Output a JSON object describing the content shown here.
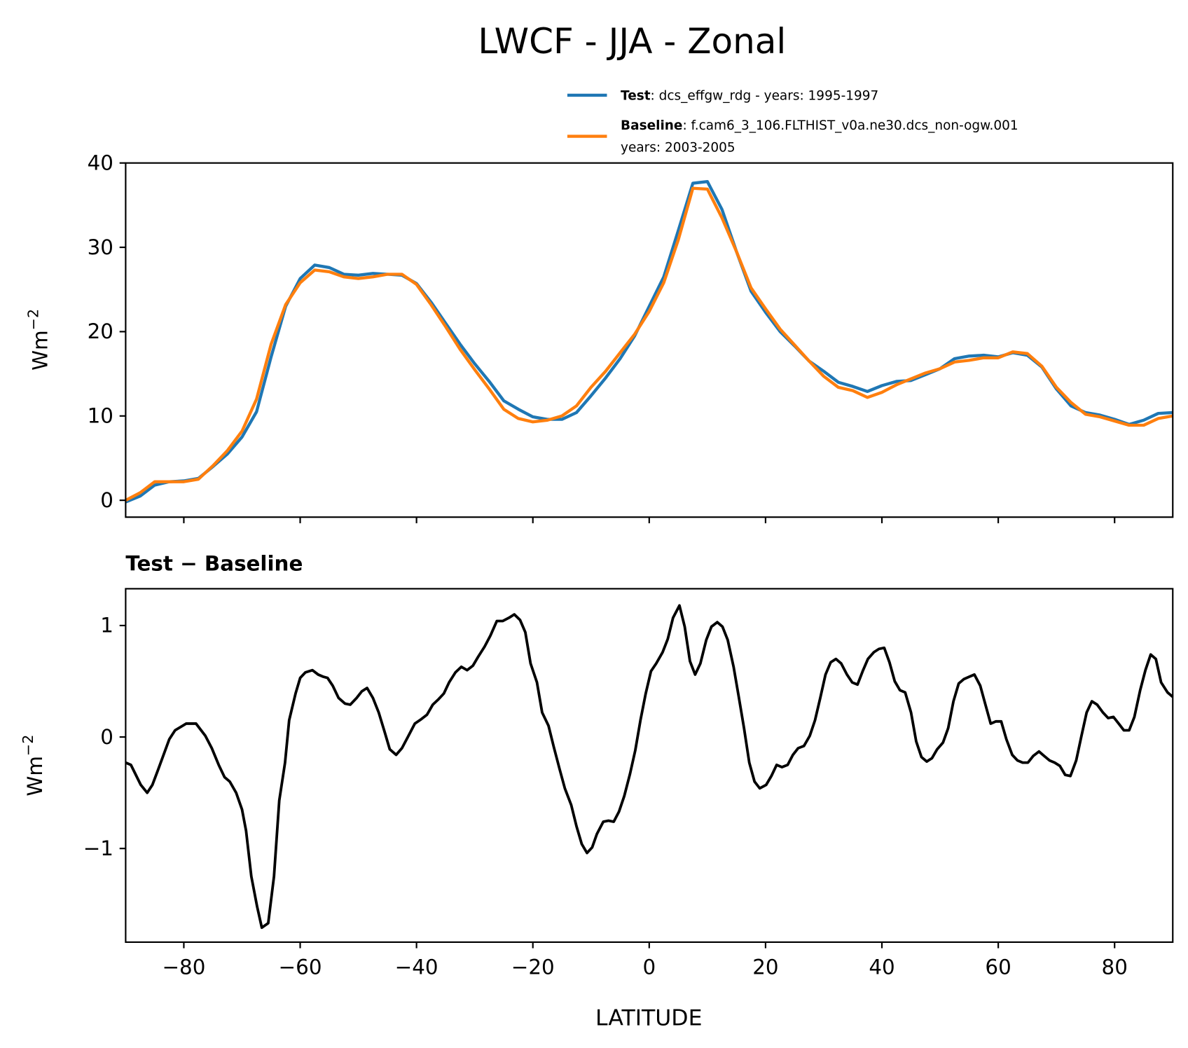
{
  "chart_data": [
    {
      "type": "line",
      "title": "LWCF - JJA - Zonal",
      "xlabel": "",
      "ylabel": "Wm",
      "ylabel_sup": "−2",
      "xlim": [
        -90,
        90
      ],
      "ylim": [
        -2,
        40
      ],
      "grid": false,
      "legend_placement": "above-right",
      "yticks": [
        0,
        10,
        20,
        30,
        40
      ],
      "ytick_labels": [
        "0",
        "10",
        "20",
        "30",
        "40"
      ],
      "xticks": [
        -80,
        -60,
        -40,
        -20,
        0,
        20,
        40,
        60,
        80
      ],
      "x": [
        -90,
        -87.5,
        -85,
        -82.5,
        -80,
        -77.5,
        -75,
        -72.5,
        -70,
        -67.5,
        -65,
        -62.5,
        -60,
        -57.5,
        -55,
        -52.5,
        -50,
        -47.5,
        -45,
        -42.5,
        -40,
        -37.5,
        -35,
        -32.5,
        -30,
        -27.5,
        -25,
        -22.5,
        -20,
        -17.5,
        -15,
        -12.5,
        -10,
        -7.5,
        -5,
        -2.5,
        0,
        2.5,
        5,
        7.5,
        10,
        12.5,
        15,
        17.5,
        20,
        22.5,
        25,
        27.5,
        30,
        32.5,
        35,
        37.5,
        40,
        42.5,
        45,
        47.5,
        50,
        52.5,
        55,
        57.5,
        60,
        62.5,
        65,
        67.5,
        70,
        72.5,
        75,
        77.5,
        80,
        82.5,
        85,
        87.5,
        90
      ],
      "series": [
        {
          "name": "Test",
          "legend_bold": "Test",
          "legend_text": ": dcs_effgw_rdg - years: 1995-1997",
          "color": "#1f77b4",
          "values": [
            -0.2,
            0.5,
            1.8,
            2.2,
            2.3,
            2.6,
            4.0,
            5.5,
            7.5,
            10.5,
            17.0,
            23.0,
            26.3,
            27.9,
            27.6,
            26.8,
            26.7,
            26.9,
            26.8,
            26.7,
            25.7,
            23.5,
            21.0,
            18.5,
            16.2,
            14.1,
            11.8,
            10.8,
            9.9,
            9.6,
            9.6,
            10.4,
            12.4,
            14.5,
            16.8,
            19.5,
            23.0,
            26.5,
            32.0,
            37.6,
            37.8,
            34.5,
            29.5,
            24.8,
            22.3,
            20.0,
            18.3,
            16.5,
            15.3,
            14.0,
            13.5,
            12.9,
            13.6,
            14.1,
            14.2,
            14.9,
            15.6,
            16.8,
            17.1,
            17.2,
            17.0,
            17.5,
            17.2,
            15.8,
            13.2,
            11.2,
            10.4,
            10.1,
            9.6,
            9.0,
            9.5,
            10.3,
            10.4
          ]
        },
        {
          "name": "Baseline",
          "legend_bold": "Baseline",
          "legend_text": ": f.cam6_3_106.FLTHIST_v0a.ne30.dcs_non-ogw.001",
          "legend_text2": "years: 2003-2005",
          "color": "#ff7f0e",
          "values": [
            0.0,
            0.9,
            2.2,
            2.2,
            2.2,
            2.5,
            4.1,
            5.9,
            8.2,
            12.0,
            18.5,
            23.2,
            25.8,
            27.3,
            27.1,
            26.5,
            26.3,
            26.5,
            26.8,
            26.8,
            25.6,
            23.2,
            20.6,
            17.9,
            15.5,
            13.2,
            10.8,
            9.7,
            9.3,
            9.5,
            10.0,
            11.2,
            13.4,
            15.3,
            17.5,
            19.7,
            22.4,
            25.8,
            30.9,
            37.0,
            36.9,
            33.5,
            29.5,
            25.2,
            22.7,
            20.3,
            18.4,
            16.5,
            14.7,
            13.4,
            13.0,
            12.2,
            12.8,
            13.7,
            14.4,
            15.1,
            15.6,
            16.4,
            16.6,
            16.9,
            16.9,
            17.6,
            17.4,
            15.9,
            13.4,
            11.6,
            10.2,
            9.9,
            9.4,
            8.9,
            8.9,
            9.7,
            10.0
          ]
        }
      ]
    },
    {
      "type": "line",
      "title": "Test − Baseline",
      "xlabel": "LATITUDE",
      "ylabel": "Wm",
      "ylabel_sup": "−2",
      "xlim": [
        -90,
        90
      ],
      "ylim": [
        -1.84,
        1.33
      ],
      "grid": false,
      "yticks": [
        1,
        0,
        -1
      ],
      "ytick_labels": [
        "1",
        "0",
        "−1"
      ],
      "xticks": [
        -80,
        -60,
        -40,
        -20,
        0,
        20,
        40,
        60,
        80
      ],
      "xtick_labels": [
        "−80",
        "−60",
        "−40",
        "−20",
        "0",
        "20",
        "40",
        "60",
        "80"
      ],
      "series": [
        {
          "name": "Test - Baseline",
          "color": "#000000",
          "x": [
            -90.0,
            -89.1,
            -87.4,
            -86.3,
            -85.4,
            -84.4,
            -82.5,
            -81.5,
            -79.6,
            -77.9,
            -76.3,
            -75.2,
            -74.0,
            -73.0,
            -72.1,
            -71.0,
            -70.0,
            -69.3,
            -68.4,
            -67.4,
            -66.6,
            -65.5,
            -64.5,
            -63.6,
            -62.6,
            -61.9,
            -60.8,
            -60.0,
            -59.1,
            -57.9,
            -56.9,
            -56.0,
            -55.3,
            -54.4,
            -53.4,
            -52.3,
            -51.4,
            -50.3,
            -49.4,
            -48.5,
            -47.5,
            -46.5,
            -45.5,
            -44.6,
            -43.5,
            -42.5,
            -41.4,
            -40.3,
            -39.2,
            -38.2,
            -37.2,
            -36.2,
            -35.3,
            -34.4,
            -33.3,
            -32.3,
            -31.3,
            -30.3,
            -29.4,
            -28.3,
            -27.3,
            -26.2,
            -25.2,
            -24.1,
            -23.2,
            -22.2,
            -21.3,
            -20.4,
            -19.3,
            -18.4,
            -17.3,
            -16.4,
            -15.4,
            -14.5,
            -13.4,
            -12.5,
            -11.6,
            -10.7,
            -9.8,
            -9.0,
            -7.9,
            -7.0,
            -6.1,
            -5.2,
            -4.3,
            -3.3,
            -2.4,
            -1.5,
            -0.6,
            0.3,
            1.2,
            2.3,
            3.2,
            4.1,
            5.2,
            6.1,
            7.0,
            7.9,
            8.8,
            9.8,
            10.7,
            11.7,
            12.6,
            13.5,
            14.5,
            15.4,
            16.3,
            17.2,
            18.1,
            19.0,
            20.1,
            21.0,
            21.9,
            22.8,
            23.8,
            24.7,
            25.6,
            26.6,
            27.6,
            28.5,
            29.4,
            30.3,
            31.2,
            32.1,
            33.0,
            34.0,
            34.9,
            35.8,
            36.7,
            37.6,
            38.6,
            39.5,
            40.4,
            41.3,
            42.2,
            43.1,
            44.0,
            45.0,
            45.9,
            46.8,
            47.7,
            48.6,
            49.5,
            50.5,
            51.4,
            52.3,
            53.2,
            54.1,
            55.0,
            55.9,
            56.9,
            57.8,
            58.7,
            59.6,
            60.5,
            61.4,
            62.4,
            63.3,
            64.2,
            65.1,
            66.0,
            67.0,
            67.9,
            68.8,
            69.7,
            70.6,
            71.5,
            72.4,
            73.4,
            74.3,
            75.2,
            76.1,
            77.0,
            78.0,
            78.9,
            79.8,
            80.7,
            81.6,
            82.5,
            83.4,
            84.4,
            85.3,
            86.2,
            87.1,
            88.0,
            89.1,
            90.0
          ],
          "values": [
            -0.23,
            -0.25,
            -0.43,
            -0.5,
            -0.43,
            -0.29,
            -0.02,
            0.06,
            0.12,
            0.12,
            0.01,
            -0.1,
            -0.25,
            -0.36,
            -0.4,
            -0.5,
            -0.65,
            -0.84,
            -1.25,
            -1.52,
            -1.71,
            -1.67,
            -1.25,
            -0.57,
            -0.23,
            0.15,
            0.39,
            0.53,
            0.58,
            0.6,
            0.56,
            0.54,
            0.53,
            0.46,
            0.35,
            0.3,
            0.29,
            0.35,
            0.41,
            0.44,
            0.35,
            0.22,
            0.05,
            -0.11,
            -0.16,
            -0.1,
            0.01,
            0.12,
            0.16,
            0.2,
            0.29,
            0.34,
            0.39,
            0.49,
            0.58,
            0.63,
            0.6,
            0.64,
            0.72,
            0.81,
            0.91,
            1.04,
            1.04,
            1.07,
            1.1,
            1.05,
            0.94,
            0.66,
            0.49,
            0.22,
            0.1,
            -0.09,
            -0.29,
            -0.46,
            -0.61,
            -0.8,
            -0.96,
            -1.04,
            -0.99,
            -0.87,
            -0.76,
            -0.75,
            -0.76,
            -0.67,
            -0.53,
            -0.33,
            -0.12,
            0.15,
            0.39,
            0.59,
            0.66,
            0.76,
            0.88,
            1.07,
            1.18,
            0.99,
            0.68,
            0.56,
            0.66,
            0.87,
            0.99,
            1.03,
            0.99,
            0.87,
            0.63,
            0.36,
            0.08,
            -0.23,
            -0.4,
            -0.46,
            -0.43,
            -0.35,
            -0.25,
            -0.27,
            -0.25,
            -0.16,
            -0.1,
            -0.08,
            0.01,
            0.15,
            0.35,
            0.56,
            0.67,
            0.7,
            0.66,
            0.56,
            0.49,
            0.47,
            0.59,
            0.7,
            0.76,
            0.79,
            0.8,
            0.67,
            0.5,
            0.42,
            0.4,
            0.22,
            -0.04,
            -0.18,
            -0.22,
            -0.19,
            -0.11,
            -0.05,
            0.08,
            0.32,
            0.48,
            0.52,
            0.54,
            0.56,
            0.46,
            0.29,
            0.12,
            0.14,
            0.14,
            -0.02,
            -0.16,
            -0.21,
            -0.23,
            -0.23,
            -0.17,
            -0.13,
            -0.17,
            -0.21,
            -0.23,
            -0.26,
            -0.34,
            -0.35,
            -0.21,
            0.01,
            0.22,
            0.32,
            0.29,
            0.22,
            0.17,
            0.18,
            0.12,
            0.06,
            0.06,
            0.18,
            0.42,
            0.6,
            0.74,
            0.7,
            0.49,
            0.4,
            0.36
          ]
        }
      ]
    }
  ]
}
